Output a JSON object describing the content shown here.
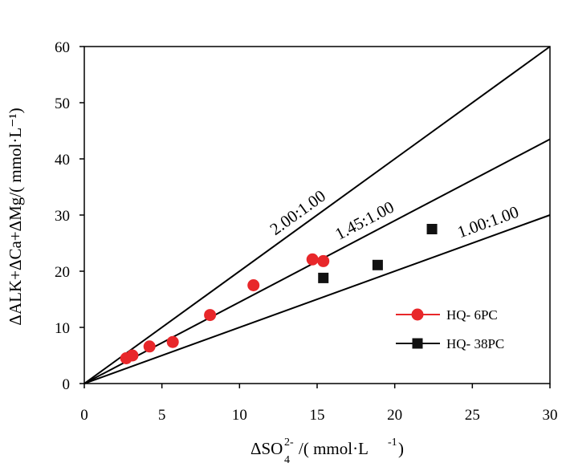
{
  "chart_data": {
    "type": "scatter",
    "xlim": [
      0,
      30
    ],
    "ylim": [
      0,
      60
    ],
    "x_ticks": [
      "0",
      "5",
      "10",
      "15",
      "20",
      "25",
      "30"
    ],
    "y_ticks": [
      "0",
      "10",
      "20",
      "30",
      "40",
      "50",
      "60"
    ],
    "xlabel": {
      "prefix": "ΔSO",
      "sub": "4",
      "sup": "2-",
      "mid": "/( mmol·L",
      "unit_sup": "-1",
      "close": ")"
    },
    "ylabel": "ΔALK+ΔCa+ΔMg/( mmol·L⁻¹)",
    "reference_lines": [
      {
        "label": "2.00:1.00",
        "slope": 2.0
      },
      {
        "label": "1.45:1.00",
        "slope": 1.45
      },
      {
        "label": "1.00:1.00",
        "slope": 1.0
      }
    ],
    "series": [
      {
        "name": "HQ- 6PC",
        "marker": "circle",
        "color": "#e8272a",
        "points": [
          [
            2.7,
            4.5
          ],
          [
            3.1,
            5.0
          ],
          [
            4.2,
            6.6
          ],
          [
            5.7,
            7.4
          ],
          [
            8.1,
            12.2
          ],
          [
            10.9,
            17.5
          ],
          [
            14.7,
            22.1
          ],
          [
            15.4,
            21.8
          ]
        ]
      },
      {
        "name": "HQ- 38PC",
        "marker": "square",
        "color": "#111111",
        "points": [
          [
            15.4,
            18.8
          ],
          [
            18.9,
            21.1
          ],
          [
            22.4,
            27.5
          ]
        ]
      }
    ]
  }
}
